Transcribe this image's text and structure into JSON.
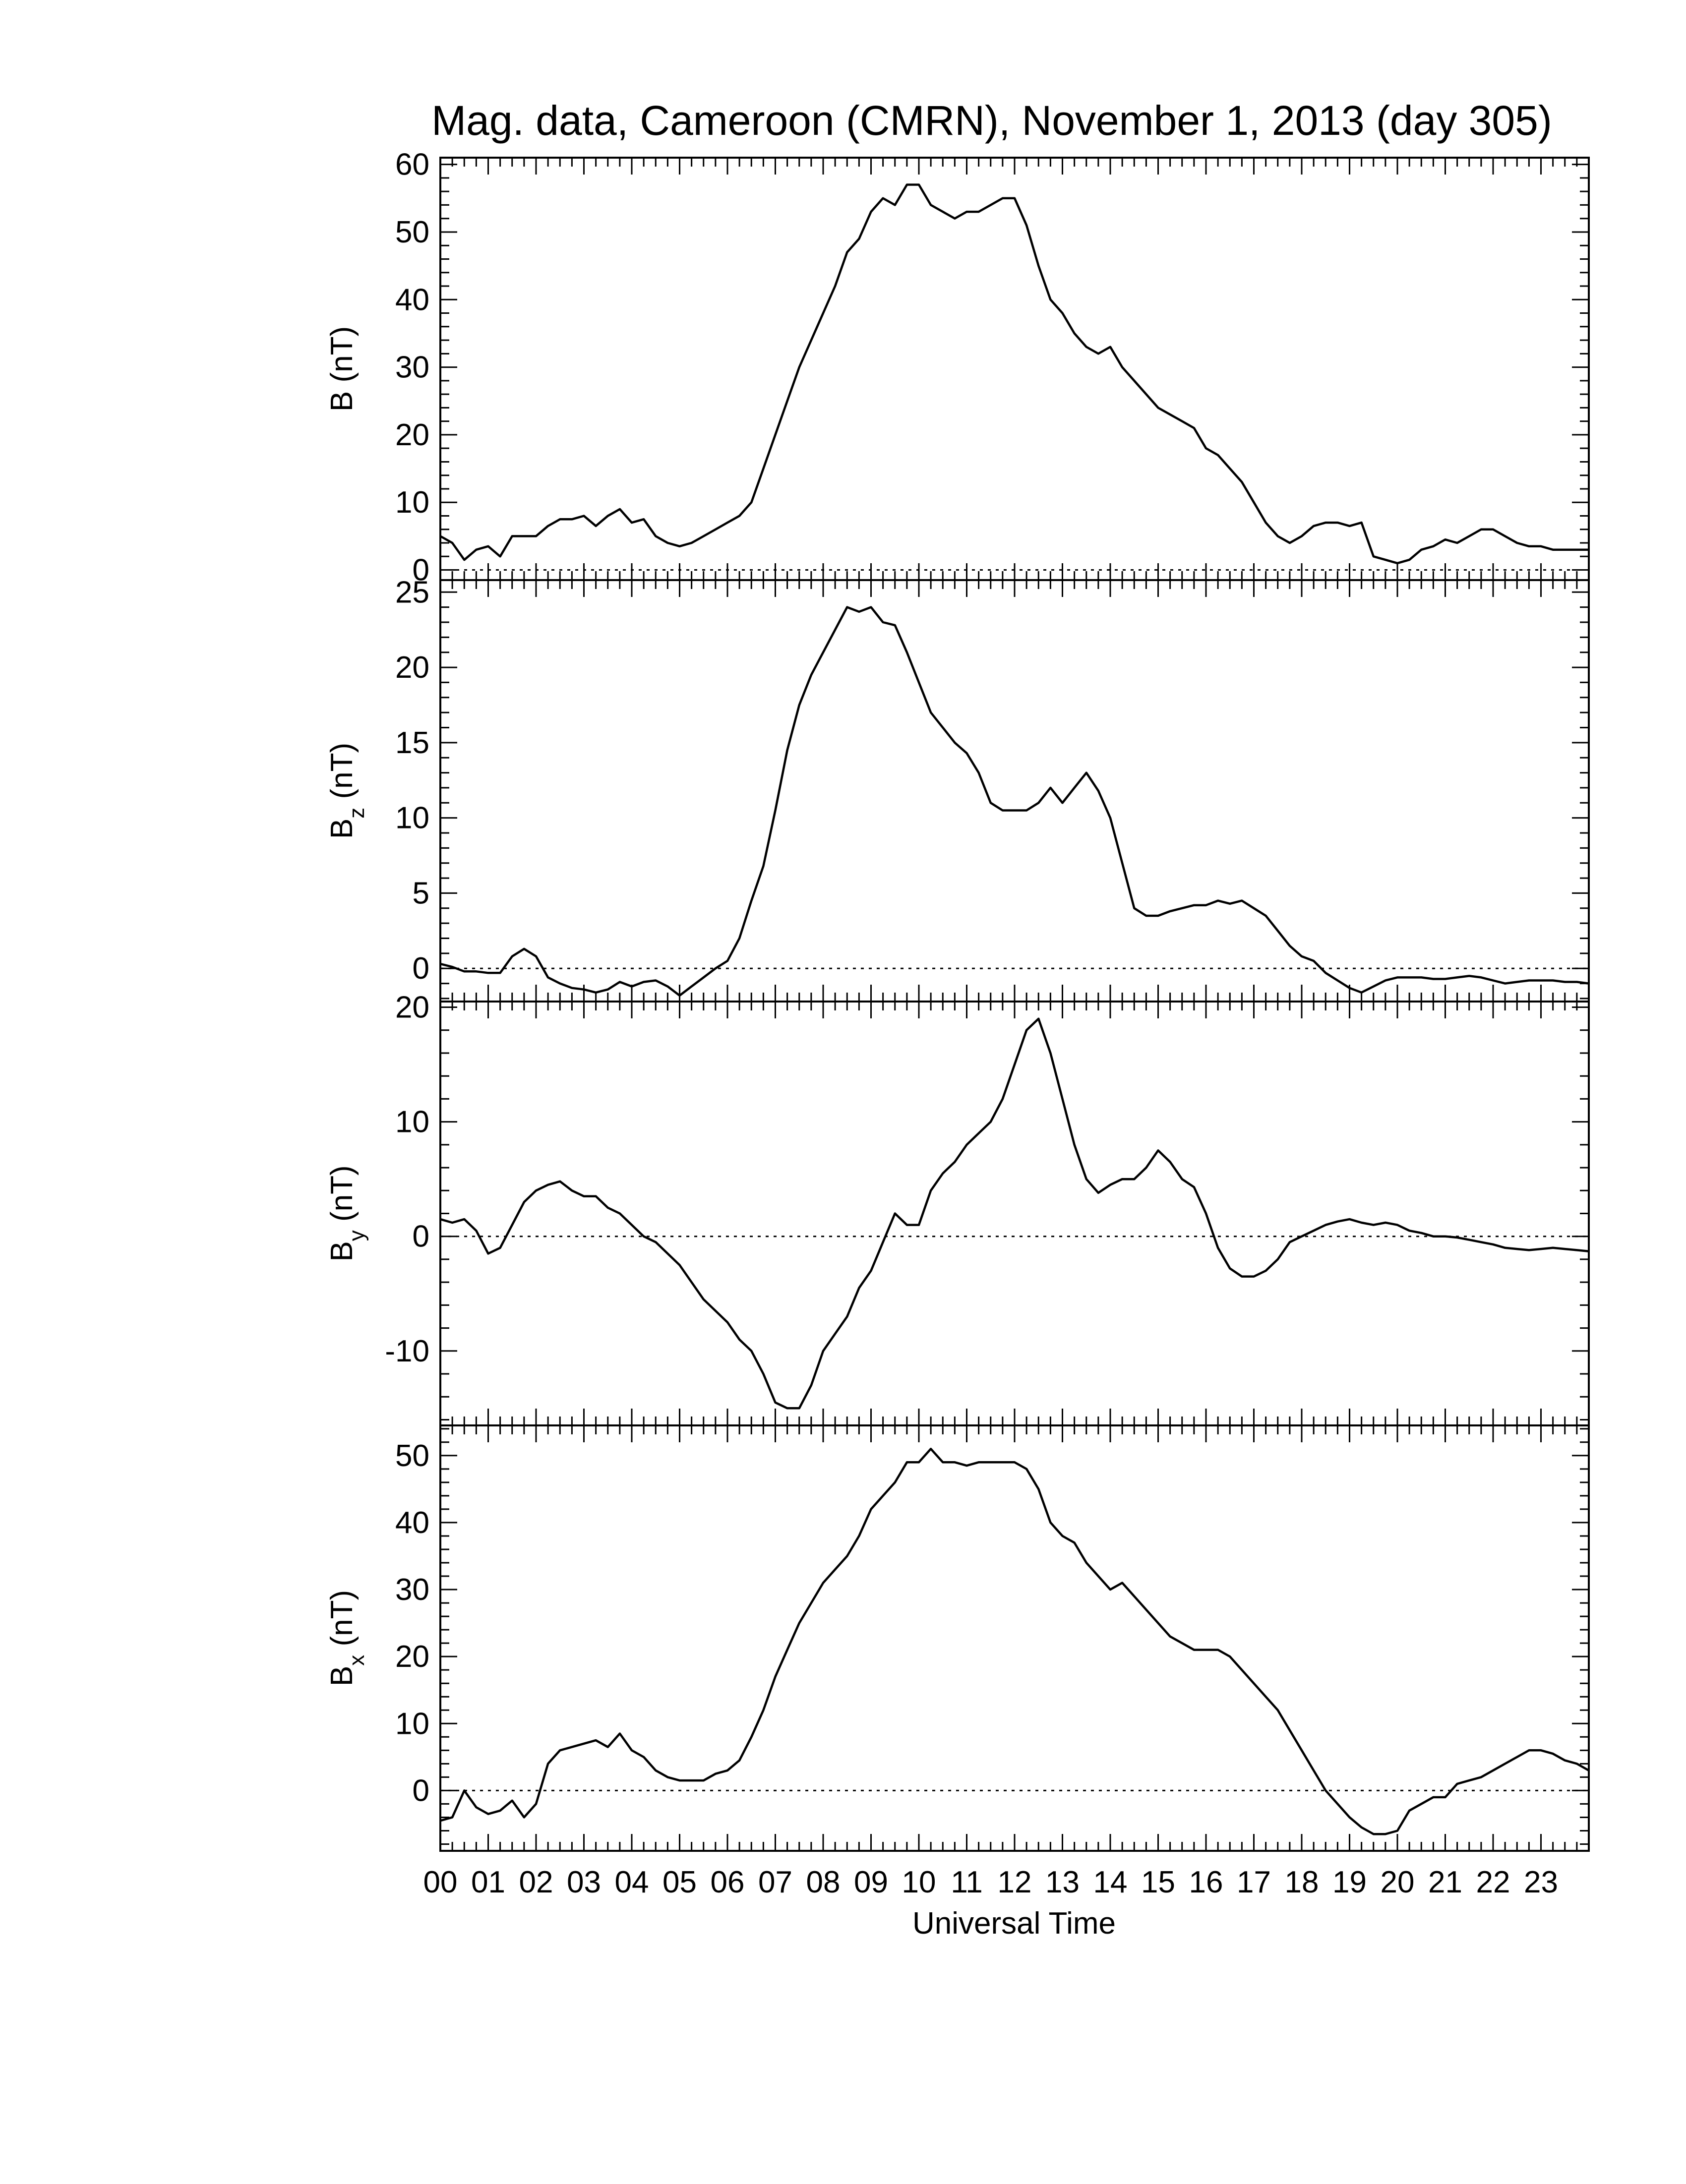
{
  "chart_data": {
    "type": "line",
    "title": "Mag. data, Cameroon (CMRN), November 1, 2013 (day 305)",
    "xlabel": "Universal Time",
    "x_unit": "hours",
    "xlim": [
      0,
      24
    ],
    "x_tick_labels": [
      "00",
      "01",
      "02",
      "03",
      "04",
      "05",
      "06",
      "07",
      "08",
      "09",
      "10",
      "11",
      "12",
      "13",
      "14",
      "15",
      "16",
      "17",
      "18",
      "19",
      "20",
      "21",
      "22",
      "23"
    ],
    "line_color": "#000000",
    "zero_line": "dotted",
    "panels": [
      {
        "id": "B",
        "ylabel": "B",
        "ylabel_sub": "",
        "ylabel_unit": "(nT)",
        "ylim": [
          -1.5,
          61
        ],
        "yticks": [
          0,
          10,
          20,
          30,
          40,
          50,
          60
        ],
        "series": [
          {
            "x": [
              0,
              0.25,
              0.5,
              0.75,
              1.0,
              1.25,
              1.5,
              1.75,
              2.0,
              2.25,
              2.5,
              2.75,
              3.0,
              3.25,
              3.5,
              3.75,
              4.0,
              4.25,
              4.5,
              4.75,
              5.0,
              5.25,
              5.5,
              5.75,
              6.0,
              6.25,
              6.5,
              6.75,
              7.0,
              7.25,
              7.5,
              7.75,
              8.0,
              8.25,
              8.5,
              8.75,
              9.0,
              9.25,
              9.5,
              9.75,
              10.0,
              10.25,
              10.5,
              10.75,
              11.0,
              11.25,
              11.5,
              11.75,
              12.0,
              12.25,
              12.5,
              12.75,
              13.0,
              13.25,
              13.5,
              13.75,
              14.0,
              14.25,
              14.5,
              14.75,
              15.0,
              15.25,
              15.5,
              15.75,
              16.0,
              16.25,
              16.5,
              16.75,
              17.0,
              17.25,
              17.5,
              17.75,
              18.0,
              18.25,
              18.5,
              18.75,
              19.0,
              19.25,
              19.5,
              19.75,
              20.0,
              20.25,
              20.5,
              20.75,
              21.0,
              21.25,
              21.5,
              21.75,
              22.0,
              22.25,
              22.5,
              22.75,
              23.0,
              23.25,
              23.5,
              23.75,
              24.0
            ],
            "y": [
              5,
              4,
              1.5,
              3,
              3.5,
              2,
              5,
              5,
              5,
              6.5,
              7.5,
              7.5,
              8,
              6.5,
              8,
              9,
              7,
              7.5,
              5,
              4,
              3.5,
              4,
              5,
              6,
              7,
              8,
              10,
              15,
              20,
              25,
              30,
              34,
              38,
              42,
              47,
              49,
              53,
              55,
              54,
              57,
              57,
              54,
              53,
              52,
              53,
              53,
              54,
              55,
              55,
              51,
              45,
              40,
              38,
              35,
              33,
              32,
              33,
              30,
              28,
              26,
              24,
              23,
              22,
              21,
              18,
              17,
              15,
              13,
              10,
              7,
              5,
              4,
              5,
              6.5,
              7,
              7,
              6.5,
              7,
              2,
              1.5,
              1,
              1.5,
              3,
              3.5,
              4.5,
              4,
              5,
              6,
              6,
              5,
              4,
              3.5,
              3.5,
              3,
              3,
              3,
              3
            ]
          }
        ]
      },
      {
        "id": "Bz",
        "ylabel": "B",
        "ylabel_sub": "z",
        "ylabel_unit": "(nT)",
        "ylim": [
          -2.2,
          25.8
        ],
        "yticks": [
          0,
          5,
          10,
          15,
          20,
          25
        ],
        "series": [
          {
            "x": [
              0,
              0.25,
              0.5,
              0.75,
              1.0,
              1.25,
              1.5,
              1.75,
              2.0,
              2.25,
              2.5,
              2.75,
              3.0,
              3.25,
              3.5,
              3.75,
              4.0,
              4.25,
              4.5,
              4.75,
              5.0,
              5.25,
              5.5,
              5.75,
              6.0,
              6.25,
              6.5,
              6.75,
              7.0,
              7.25,
              7.5,
              7.75,
              8.0,
              8.25,
              8.5,
              8.75,
              9.0,
              9.25,
              9.5,
              9.75,
              10.0,
              10.25,
              10.5,
              10.75,
              11.0,
              11.25,
              11.5,
              11.75,
              12.0,
              12.25,
              12.5,
              12.75,
              13.0,
              13.25,
              13.5,
              13.75,
              14.0,
              14.25,
              14.5,
              14.75,
              15.0,
              15.25,
              15.5,
              15.75,
              16.0,
              16.25,
              16.5,
              16.75,
              17.0,
              17.25,
              17.5,
              17.75,
              18.0,
              18.25,
              18.5,
              18.75,
              19.0,
              19.25,
              19.5,
              19.75,
              20.0,
              20.25,
              20.5,
              20.75,
              21.0,
              21.25,
              21.5,
              21.75,
              22.0,
              22.25,
              22.5,
              22.75,
              23.0,
              23.25,
              23.5,
              23.75,
              24.0
            ],
            "y": [
              0.3,
              0.1,
              -0.2,
              -0.2,
              -0.3,
              -0.3,
              0.8,
              1.3,
              0.8,
              -0.6,
              -1,
              -1.3,
              -1.4,
              -1.6,
              -1.4,
              -0.9,
              -1.2,
              -0.9,
              -0.8,
              -1.2,
              -1.8,
              -1.2,
              -0.6,
              0,
              0.5,
              2,
              4.5,
              6.8,
              10.5,
              14.5,
              17.5,
              19.5,
              21,
              22.5,
              24,
              23.7,
              24,
              23,
              22.8,
              21,
              19,
              17,
              16,
              15,
              14.3,
              13,
              11,
              10.5,
              10.5,
              10.5,
              11,
              12,
              11,
              12,
              13,
              11.8,
              10,
              7,
              4,
              3.5,
              3.5,
              3.8,
              4,
              4.2,
              4.2,
              4.5,
              4.3,
              4.5,
              4,
              3.5,
              2.5,
              1.5,
              0.8,
              0.5,
              -0.3,
              -0.8,
              -1.3,
              -1.6,
              -1.2,
              -0.8,
              -0.6,
              -0.6,
              -0.6,
              -0.7,
              -0.7,
              -0.6,
              -0.5,
              -0.6,
              -0.8,
              -1.0,
              -0.9,
              -0.8,
              -0.8,
              -0.8,
              -0.9,
              -0.9,
              -1.0
            ]
          }
        ]
      },
      {
        "id": "By",
        "ylabel": "B",
        "ylabel_sub": "y",
        "ylabel_unit": "(nT)",
        "ylim": [
          -16.5,
          20.5
        ],
        "yticks": [
          -10,
          0,
          10,
          20
        ],
        "series": [
          {
            "x": [
              0,
              0.25,
              0.5,
              0.75,
              1.0,
              1.25,
              1.5,
              1.75,
              2.0,
              2.25,
              2.5,
              2.75,
              3.0,
              3.25,
              3.5,
              3.75,
              4.0,
              4.25,
              4.5,
              4.75,
              5.0,
              5.25,
              5.5,
              5.75,
              6.0,
              6.25,
              6.5,
              6.75,
              7.0,
              7.25,
              7.5,
              7.75,
              8.0,
              8.25,
              8.5,
              8.75,
              9.0,
              9.25,
              9.5,
              9.75,
              10.0,
              10.25,
              10.5,
              10.75,
              11.0,
              11.25,
              11.5,
              11.75,
              12.0,
              12.25,
              12.5,
              12.75,
              13.0,
              13.25,
              13.5,
              13.75,
              14.0,
              14.25,
              14.5,
              14.75,
              15.0,
              15.25,
              15.5,
              15.75,
              16.0,
              16.25,
              16.5,
              16.75,
              17.0,
              17.25,
              17.5,
              17.75,
              18.0,
              18.25,
              18.5,
              18.75,
              19.0,
              19.25,
              19.5,
              19.75,
              20.0,
              20.25,
              20.5,
              20.75,
              21.0,
              21.25,
              21.5,
              21.75,
              22.0,
              22.25,
              22.5,
              22.75,
              23.0,
              23.25,
              23.5,
              23.75,
              24.0
            ],
            "y": [
              1.5,
              1.2,
              1.5,
              0.5,
              -1.5,
              -1,
              1,
              3,
              4,
              4.5,
              4.8,
              4,
              3.5,
              3.5,
              2.5,
              2,
              1,
              0,
              -0.5,
              -1.5,
              -2.5,
              -4,
              -5.5,
              -6.5,
              -7.5,
              -9,
              -10,
              -12,
              -14.5,
              -15,
              -15,
              -13,
              -10,
              -8.5,
              -7,
              -4.5,
              -3,
              -0.5,
              2,
              1,
              1,
              4,
              5.5,
              6.5,
              8,
              9,
              10,
              12,
              15,
              18,
              19,
              16,
              12,
              8,
              5,
              3.8,
              4.5,
              5,
              5,
              6,
              7.5,
              6.5,
              5,
              4.3,
              2,
              -1,
              -2.8,
              -3.5,
              -3.5,
              -3,
              -2,
              -0.5,
              0,
              0.5,
              1,
              1.3,
              1.5,
              1.2,
              1,
              1.2,
              1,
              0.5,
              0.3,
              0,
              0,
              -0.1,
              -0.3,
              -0.5,
              -0.7,
              -1,
              -1.1,
              -1.2,
              -1.1,
              -1,
              -1.1,
              -1.2,
              -1.3
            ]
          }
        ]
      },
      {
        "id": "Bx",
        "ylabel": "B",
        "ylabel_sub": "x",
        "ylabel_unit": "(nT)",
        "ylim": [
          -9,
          54.5
        ],
        "yticks": [
          0,
          10,
          20,
          30,
          40,
          50
        ],
        "series": [
          {
            "x": [
              0,
              0.25,
              0.5,
              0.75,
              1.0,
              1.25,
              1.5,
              1.75,
              2.0,
              2.25,
              2.5,
              2.75,
              3.0,
              3.25,
              3.5,
              3.75,
              4.0,
              4.25,
              4.5,
              4.75,
              5.0,
              5.25,
              5.5,
              5.75,
              6.0,
              6.25,
              6.5,
              6.75,
              7.0,
              7.25,
              7.5,
              7.75,
              8.0,
              8.25,
              8.5,
              8.75,
              9.0,
              9.25,
              9.5,
              9.75,
              10.0,
              10.25,
              10.5,
              10.75,
              11.0,
              11.25,
              11.5,
              11.75,
              12.0,
              12.25,
              12.5,
              12.75,
              13.0,
              13.25,
              13.5,
              13.75,
              14.0,
              14.25,
              14.5,
              14.75,
              15.0,
              15.25,
              15.5,
              15.75,
              16.0,
              16.25,
              16.5,
              16.75,
              17.0,
              17.25,
              17.5,
              17.75,
              18.0,
              18.25,
              18.5,
              18.75,
              19.0,
              19.25,
              19.5,
              19.75,
              20.0,
              20.25,
              20.5,
              20.75,
              21.0,
              21.25,
              21.5,
              21.75,
              22.0,
              22.25,
              22.5,
              22.75,
              23.0,
              23.25,
              23.5,
              23.75,
              24.0
            ],
            "y": [
              -4.5,
              -4,
              0,
              -2.5,
              -3.5,
              -3,
              -1.5,
              -4,
              -2,
              4,
              6,
              6.5,
              7,
              7.5,
              6.5,
              8.5,
              6,
              5,
              3,
              2,
              1.5,
              1.5,
              1.5,
              2.5,
              3,
              4.5,
              8,
              12,
              17,
              21,
              25,
              28,
              31,
              33,
              35,
              38,
              42,
              44,
              46,
              49,
              49,
              51,
              49,
              49,
              48.5,
              49,
              49,
              49,
              49,
              48,
              45,
              40,
              38,
              37,
              34,
              32,
              30,
              31,
              29,
              27,
              25,
              23,
              22,
              21,
              21,
              21,
              20,
              18,
              16,
              14,
              12,
              9,
              6,
              3,
              0,
              -2,
              -4,
              -5.5,
              -6.5,
              -6.5,
              -6,
              -3,
              -2,
              -1,
              -1,
              1,
              1.5,
              2,
              3,
              4,
              5,
              6,
              6,
              5.5,
              4.5,
              4,
              3
            ]
          }
        ]
      }
    ]
  }
}
